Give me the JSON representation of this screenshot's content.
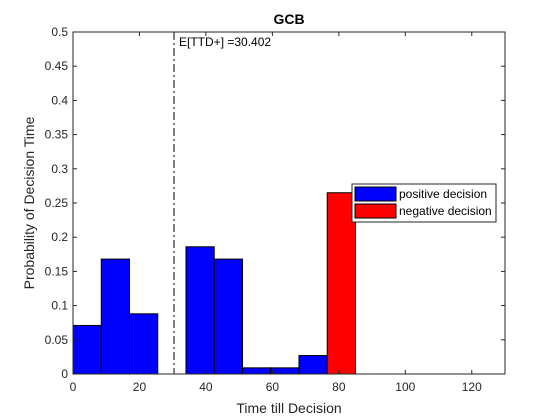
{
  "chart_data": {
    "type": "bar",
    "title": "GCB",
    "xlabel": "Time till Decision",
    "ylabel": "Probability of Decision Time",
    "xlim": [
      0,
      130
    ],
    "ylim": [
      0,
      0.5
    ],
    "xticks": [
      0,
      20,
      40,
      60,
      80,
      100,
      120
    ],
    "xtick_labels": [
      "0",
      "20",
      "40",
      "60",
      "80",
      "100",
      "120"
    ],
    "yticks": [
      0,
      0.05,
      0.1,
      0.15,
      0.2,
      0.25,
      0.3,
      0.35,
      0.4,
      0.45,
      0.5
    ],
    "ytick_labels": [
      "0",
      "0.05",
      "0.1",
      "0.15",
      "0.2",
      "0.25",
      "0.3",
      "0.35",
      "0.4",
      "0.45",
      "0.5"
    ],
    "grid": false,
    "legend_position": "right, vertically centered",
    "series": [
      {
        "name": "positive decision",
        "color": "#0000ff",
        "bins": [
          {
            "x_start": 0,
            "x_end": 8.5,
            "value": 0.071
          },
          {
            "x_start": 8.5,
            "x_end": 17,
            "value": 0.168
          },
          {
            "x_start": 17,
            "x_end": 25.5,
            "value": 0.088
          },
          {
            "x_start": 25.5,
            "x_end": 34,
            "value": 0.0
          },
          {
            "x_start": 34,
            "x_end": 42.5,
            "value": 0.186
          },
          {
            "x_start": 42.5,
            "x_end": 51,
            "value": 0.168
          },
          {
            "x_start": 51,
            "x_end": 59.5,
            "value": 0.009
          },
          {
            "x_start": 59.5,
            "x_end": 68,
            "value": 0.009
          },
          {
            "x_start": 68,
            "x_end": 76.5,
            "value": 0.027
          }
        ]
      },
      {
        "name": "negative decision",
        "color": "#ff0000",
        "bins": [
          {
            "x_start": 76.5,
            "x_end": 85,
            "value": 0.265
          }
        ]
      }
    ],
    "annotations": [
      {
        "type": "vline",
        "x": 30.402,
        "style": "dash-dot",
        "label": "E[TTD+] =30.402"
      }
    ]
  }
}
